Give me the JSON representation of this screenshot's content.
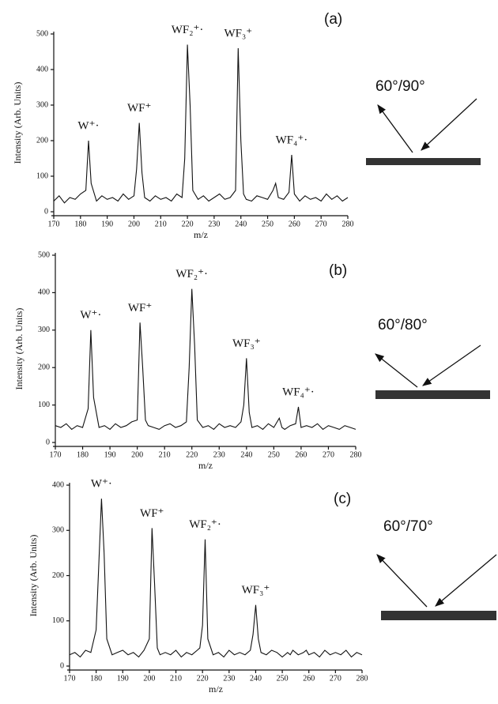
{
  "chart_data": [
    {
      "type": "line",
      "panel_label": "(a)",
      "angle_label": "60°/90°",
      "xlabel": "m/z",
      "ylabel": "Intensity (Arb. Units)",
      "xlim": [
        170,
        280
      ],
      "xticks": [
        170,
        180,
        190,
        200,
        210,
        220,
        230,
        240,
        250,
        260,
        270,
        280
      ],
      "ylim": [
        0,
        500
      ],
      "yticks": [
        0,
        100,
        200,
        300,
        400,
        500
      ],
      "x": [
        170,
        172,
        174,
        176,
        178,
        180,
        182,
        183,
        184,
        186,
        188,
        190,
        192,
        194,
        196,
        198,
        200,
        201,
        202,
        203,
        204,
        206,
        208,
        210,
        212,
        214,
        216,
        218,
        219,
        220,
        221,
        222,
        224,
        226,
        228,
        230,
        232,
        234,
        236,
        238,
        239,
        240,
        241,
        242,
        244,
        246,
        248,
        250,
        252,
        253,
        254,
        256,
        258,
        259,
        260,
        262,
        264,
        266,
        268,
        270,
        272,
        274,
        276,
        278,
        280
      ],
      "series": [
        {
          "color": "#111111",
          "values": [
            30,
            45,
            25,
            40,
            35,
            50,
            60,
            200,
            80,
            30,
            45,
            35,
            40,
            30,
            50,
            35,
            45,
            120,
            250,
            110,
            40,
            30,
            45,
            35,
            40,
            30,
            50,
            40,
            150,
            470,
            300,
            60,
            35,
            45,
            30,
            40,
            50,
            35,
            40,
            60,
            460,
            200,
            50,
            35,
            30,
            45,
            40,
            35,
            60,
            80,
            40,
            35,
            55,
            160,
            50,
            30,
            45,
            35,
            40,
            30,
            50,
            35,
            45,
            30,
            40
          ]
        }
      ],
      "annotations": [
        {
          "text": "W⁺·",
          "x": 183
        },
        {
          "text": "WF⁺",
          "x": 202
        },
        {
          "text": "WF₂⁺·",
          "x": 220
        },
        {
          "text": "WF₃⁺",
          "x": 239
        },
        {
          "text": "WF₄⁺·",
          "x": 259
        }
      ]
    },
    {
      "type": "line",
      "panel_label": "(b)",
      "angle_label": "60°/80°",
      "xlabel": "m/z",
      "ylabel": "Intensity (Arb. Units)",
      "xlim": [
        170,
        280
      ],
      "xticks": [
        170,
        180,
        190,
        200,
        210,
        220,
        230,
        240,
        250,
        260,
        270,
        280
      ],
      "ylim": [
        0,
        500
      ],
      "yticks": [
        0,
        100,
        200,
        300,
        400,
        500
      ],
      "x": [
        170,
        172,
        174,
        176,
        178,
        180,
        182,
        183,
        184,
        186,
        188,
        190,
        192,
        194,
        196,
        198,
        200,
        201,
        202,
        203,
        204,
        206,
        208,
        210,
        212,
        214,
        216,
        218,
        219,
        220,
        221,
        222,
        224,
        226,
        228,
        230,
        232,
        234,
        236,
        238,
        239,
        240,
        241,
        242,
        244,
        246,
        248,
        250,
        252,
        253,
        254,
        256,
        258,
        259,
        260,
        262,
        264,
        266,
        268,
        270,
        272,
        274,
        276,
        278,
        280
      ],
      "series": [
        {
          "color": "#111111",
          "values": [
            45,
            40,
            50,
            35,
            45,
            40,
            90,
            300,
            120,
            40,
            45,
            35,
            50,
            40,
            45,
            55,
            60,
            320,
            200,
            60,
            45,
            40,
            35,
            45,
            50,
            40,
            45,
            55,
            200,
            410,
            260,
            60,
            40,
            45,
            35,
            50,
            40,
            45,
            40,
            55,
            100,
            225,
            80,
            40,
            45,
            35,
            50,
            40,
            65,
            40,
            35,
            45,
            50,
            95,
            40,
            45,
            40,
            50,
            35,
            45,
            40,
            35,
            45,
            40,
            35
          ]
        }
      ],
      "annotations": [
        {
          "text": "W⁺·",
          "x": 183
        },
        {
          "text": "WF⁺",
          "x": 201
        },
        {
          "text": "WF₂⁺·",
          "x": 220
        },
        {
          "text": "WF₃⁺",
          "x": 240
        },
        {
          "text": "WF₄⁺·",
          "x": 259
        }
      ]
    },
    {
      "type": "line",
      "panel_label": "(c)",
      "angle_label": "60°/70°",
      "xlabel": "m/z",
      "ylabel": "Intensity (Arb. Units)",
      "xlim": [
        170,
        280
      ],
      "xticks": [
        170,
        180,
        190,
        200,
        210,
        220,
        230,
        240,
        250,
        260,
        270,
        280
      ],
      "ylim": [
        0,
        400
      ],
      "yticks": [
        0,
        100,
        200,
        300,
        400
      ],
      "x": [
        170,
        172,
        174,
        176,
        178,
        180,
        182,
        183,
        184,
        186,
        188,
        190,
        192,
        194,
        196,
        198,
        200,
        201,
        202,
        203,
        204,
        206,
        208,
        210,
        212,
        214,
        216,
        218,
        219,
        220,
        221,
        222,
        224,
        226,
        228,
        230,
        232,
        234,
        236,
        238,
        239,
        240,
        241,
        242,
        244,
        246,
        248,
        250,
        252,
        253,
        254,
        256,
        258,
        259,
        260,
        262,
        264,
        266,
        268,
        270,
        272,
        274,
        276,
        278,
        280
      ],
      "series": [
        {
          "color": "#111111",
          "values": [
            25,
            30,
            20,
            35,
            30,
            80,
            370,
            250,
            60,
            25,
            30,
            35,
            25,
            30,
            20,
            35,
            60,
            305,
            180,
            40,
            25,
            30,
            25,
            35,
            20,
            30,
            25,
            35,
            40,
            90,
            280,
            60,
            25,
            30,
            20,
            35,
            25,
            30,
            25,
            35,
            70,
            135,
            60,
            30,
            25,
            35,
            30,
            20,
            30,
            25,
            35,
            25,
            30,
            35,
            25,
            30,
            20,
            35,
            25,
            30,
            25,
            35,
            20,
            30,
            25
          ]
        }
      ],
      "annotations": [
        {
          "text": "W⁺·",
          "x": 182
        },
        {
          "text": "WF⁺",
          "x": 201
        },
        {
          "text": "WF₂⁺·",
          "x": 221
        },
        {
          "text": "WF₃⁺",
          "x": 240
        }
      ]
    }
  ]
}
